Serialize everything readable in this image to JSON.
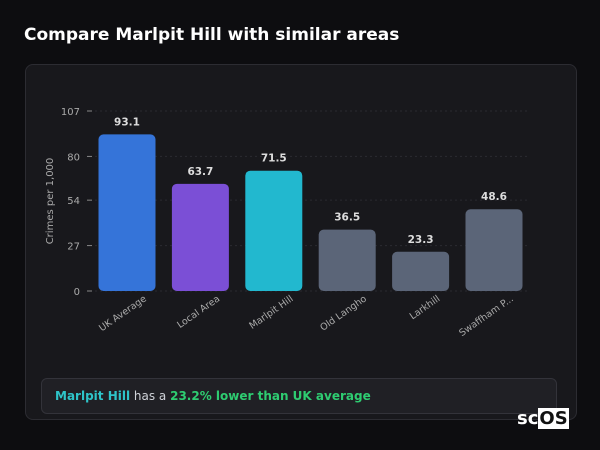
{
  "title": "Compare Marlpit Hill with similar areas",
  "chart_data": {
    "type": "bar",
    "categories": [
      "UK Average",
      "Local Area",
      "Marlpit Hill",
      "Old Langho",
      "Larkhill",
      "Swaffham P..."
    ],
    "values": [
      93.1,
      63.7,
      71.5,
      36.5,
      23.3,
      48.6
    ],
    "colors": [
      "#3574d9",
      "#7b4fd6",
      "#22b8cf",
      "#5b6578",
      "#5b6578",
      "#5b6578"
    ],
    "ylabel": "Crimes per 1,000",
    "yticks": [
      0,
      27,
      54,
      80,
      107
    ],
    "ylim": [
      0,
      107
    ],
    "grid": true
  },
  "summary": {
    "area": "Marlpit Hill",
    "text": " has a ",
    "highlight": "23.2% lower than UK average"
  },
  "watermark": {
    "a": "sc",
    "b": "OS"
  }
}
